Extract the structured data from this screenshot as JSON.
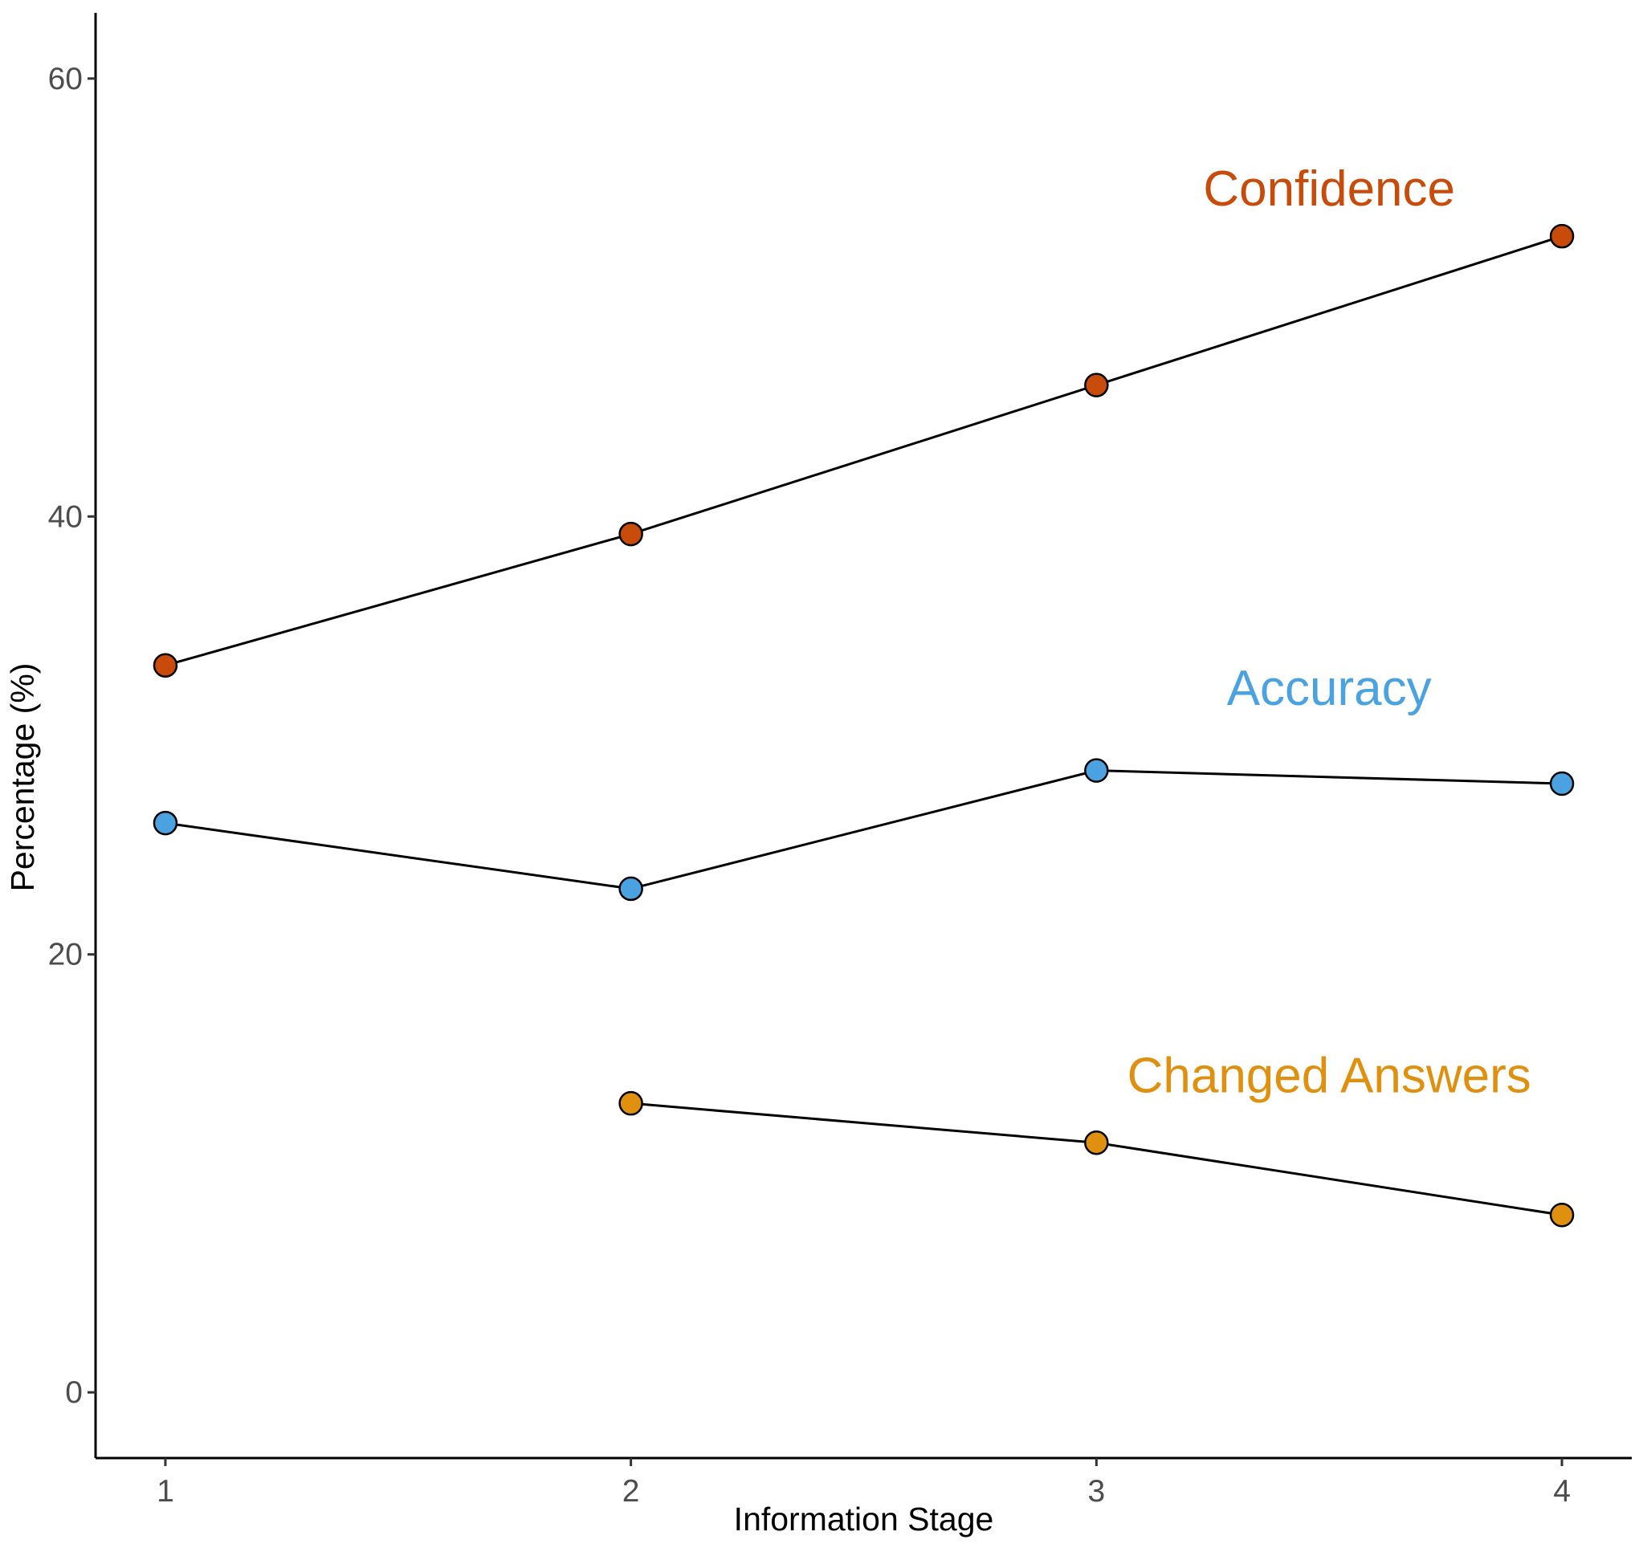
{
  "chart_data": {
    "type": "line",
    "title": "",
    "xlabel": "Information Stage",
    "ylabel": "Percentage (%)",
    "x": [
      1,
      2,
      3,
      4
    ],
    "xlim": [
      0.85,
      4.15
    ],
    "ylim": [
      -3,
      63
    ],
    "x_ticks": [
      "1",
      "2",
      "3",
      "4"
    ],
    "y_ticks": [
      "0",
      "20",
      "40",
      "60"
    ],
    "y_tick_values": [
      0,
      20,
      40,
      60
    ],
    "grid": false,
    "legend": "direct labels",
    "series": [
      {
        "name": "Confidence",
        "color": "#C84B0A",
        "points": [
          [
            1,
            33.2
          ],
          [
            2,
            39.2
          ],
          [
            3,
            46.0
          ],
          [
            4,
            52.8
          ]
        ]
      },
      {
        "name": "Accuracy",
        "color": "#4AA3E0",
        "points": [
          [
            1,
            26.0
          ],
          [
            2,
            23.0
          ],
          [
            3,
            28.4
          ],
          [
            4,
            27.8
          ]
        ]
      },
      {
        "name": "Changed Answers",
        "color": "#E0900F",
        "points": [
          [
            2,
            13.2
          ],
          [
            3,
            11.4
          ],
          [
            4,
            8.1
          ]
        ]
      }
    ]
  }
}
